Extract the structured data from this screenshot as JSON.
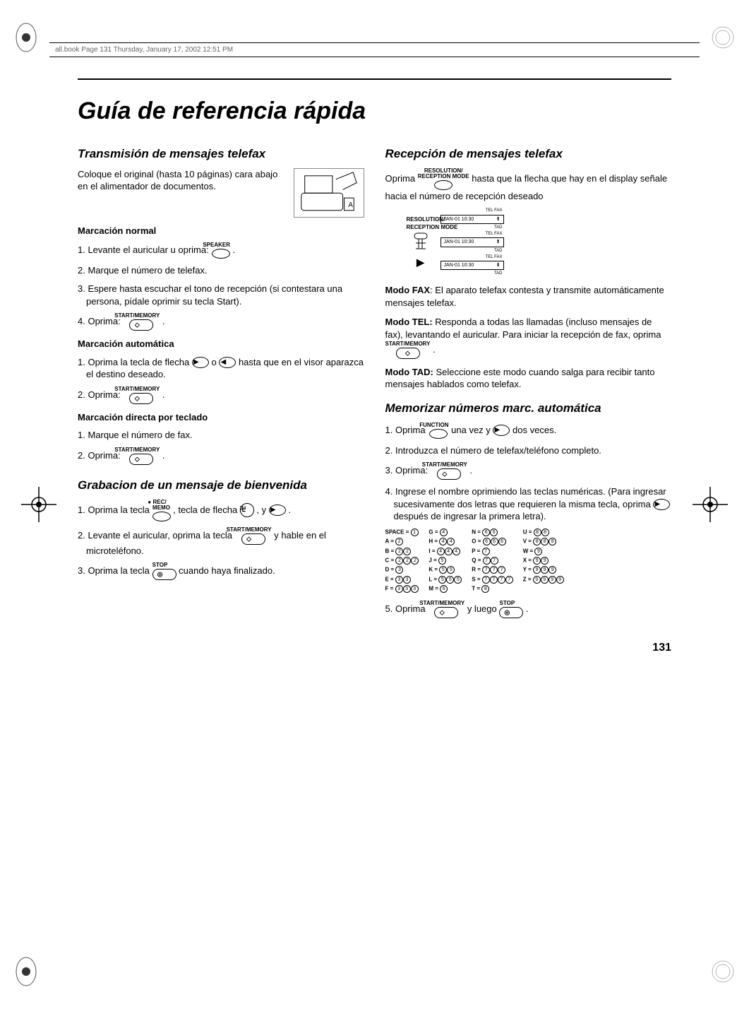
{
  "header": {
    "running": "all.book  Page 131  Thursday, January 17, 2002  12:51 PM"
  },
  "title": "Guía de referencia rápida",
  "page_number": "131",
  "buttons": {
    "speaker": "SPEAKER",
    "start_memory": "START/MEMORY",
    "rec_memo": "● REC/\nMEMO",
    "stop": "STOP",
    "function": "FUNCTION",
    "resolution": "RESOLUTION/\nRECEPTION MODE"
  },
  "left": {
    "s1_title": "Transmisión de mensajes telefax",
    "intro": "Coloque el original (hasta 10 páginas) cara abajo en el alimentador de documentos.",
    "sub1": "Marcación normal",
    "s1_1a": "1. Levante el auricular u oprima: ",
    "s1_1b": ".",
    "s1_2": "2. Marque el número de telefax.",
    "s1_3": "3. Espere hasta escuchar el tono de recepción (si contestara una persona, pídale oprimir su tecla Start).",
    "s1_4a": "4. Oprima: ",
    "s1_4b": ".",
    "sub2": "Marcación automática",
    "s2_1a": "1. Oprima la tecla de flecha ",
    "s2_1b": " o ",
    "s2_1c": " hasta que en el visor aparazca el destino deseado.",
    "s2_2a": "2. Oprima: ",
    "s2_2b": ".",
    "sub3": "Marcación directa por teclado",
    "s3_1": "1. Marque el número de fax.",
    "s3_2a": "2. Oprima: ",
    "s3_2b": ".",
    "s4_title": "Grabacion de un mensaje de bienvenida",
    "s4_1a": "1. Oprima la tecla ",
    "s4_1b": ", tecla de flecha ",
    "s4_1c": ", y ",
    "s4_1d": ".",
    "s4_2a": "2. Levante el auricular, oprima la tecla ",
    "s4_2b": " y hable en el microteléfono.",
    "s4_3a": "3. Oprima la tecla ",
    "s4_3b": " cuando haya finalizado."
  },
  "right": {
    "s1_title": "Recepción de mensajes telefax",
    "r1a": "Oprima ",
    "r1b": " hasta que la flecha que hay en el display señale hacia el número de recepción deseado",
    "display_time": "JAN-01 10:30",
    "tel_fax": "TEL  FAX",
    "tad": "TAD",
    "fax_mode_label": "Modo FAX",
    "fax_mode_text": ": El aparato telefax contesta y transmite automáticamente mensajes telefax.",
    "tel_mode_label": "Modo TEL:",
    "tel_mode_text": " Responda a todas las llamadas (incluso mensajes de fax), levantando el auricular. Para iniciar la recepción de fax, oprima ",
    "tel_mode_end": ".",
    "tad_mode_label": "Modo TAD:",
    "tad_mode_text": " Seleccione este modo cuando salga para recibir tanto mensajes hablados como telefax.",
    "s2_title": "Memorizar números marc. automática",
    "m1a": "1. Oprima ",
    "m1b": " una vez y ",
    "m1c": " dos veces.",
    "m2": "2. Introduzca el número de telefax/teléfono completo.",
    "m3a": "3. Oprima: ",
    "m3b": ".",
    "m4a": "4. Ingrese el nombre oprimiendo las teclas numéricas. (Para ingresar sucesivamente dos letras que requieren la misma tecla, oprima ",
    "m4b": " después de ingresar la primera letra).",
    "m5a": "5. Oprima ",
    "m5b": " y luego ",
    "m5c": "."
  },
  "chartable": {
    "c1": [
      "SPACE =|1",
      "A =|2",
      "B =|2,2",
      "C =|2,2,2",
      "D =|3",
      "E =|3,3",
      "F =|3,3,3"
    ],
    "c2": [
      "G =|4",
      "H =|4,4",
      "I =|4,4,4",
      "J =|5",
      "K =|5,5",
      "L =|5,5,5",
      "M =|6"
    ],
    "c3": [
      "N =|6,6",
      "O =|6,6,6",
      "P =|7",
      "Q =|7,7",
      "R =|7,7,7",
      "S =|7,7,7,7",
      "T =|8"
    ],
    "c4": [
      "U =|8,8",
      "V =|8,8,8",
      "W =|9",
      "X =|9,9",
      "Y =|9,9,9",
      "Z =|9,9,9,9"
    ]
  }
}
